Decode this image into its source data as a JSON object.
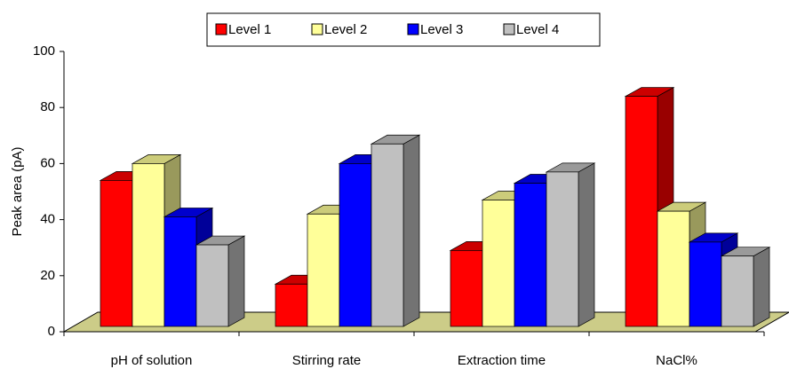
{
  "chart_data": {
    "type": "bar3d",
    "y_label": "Peak area (pA)",
    "categories": [
      "pH of solution",
      "Stirring rate",
      "Extraction time",
      "NaCl%"
    ],
    "series": [
      {
        "name": "Level 1",
        "color": "#ff0000",
        "values": [
          54,
          17,
          29,
          84
        ]
      },
      {
        "name": "Level 2",
        "color": "#ffff99",
        "values": [
          60,
          42,
          47,
          43
        ]
      },
      {
        "name": "Level 3",
        "color": "#0000ff",
        "values": [
          41,
          60,
          53,
          32
        ]
      },
      {
        "name": "Level 4",
        "color": "#c0c0c0",
        "values": [
          31,
          67,
          57,
          27
        ]
      }
    ],
    "ylim": [
      0,
      100
    ],
    "yticks": [
      0,
      20,
      40,
      60,
      80,
      100
    ],
    "floor_color": "#cccc88",
    "legend": "top"
  }
}
